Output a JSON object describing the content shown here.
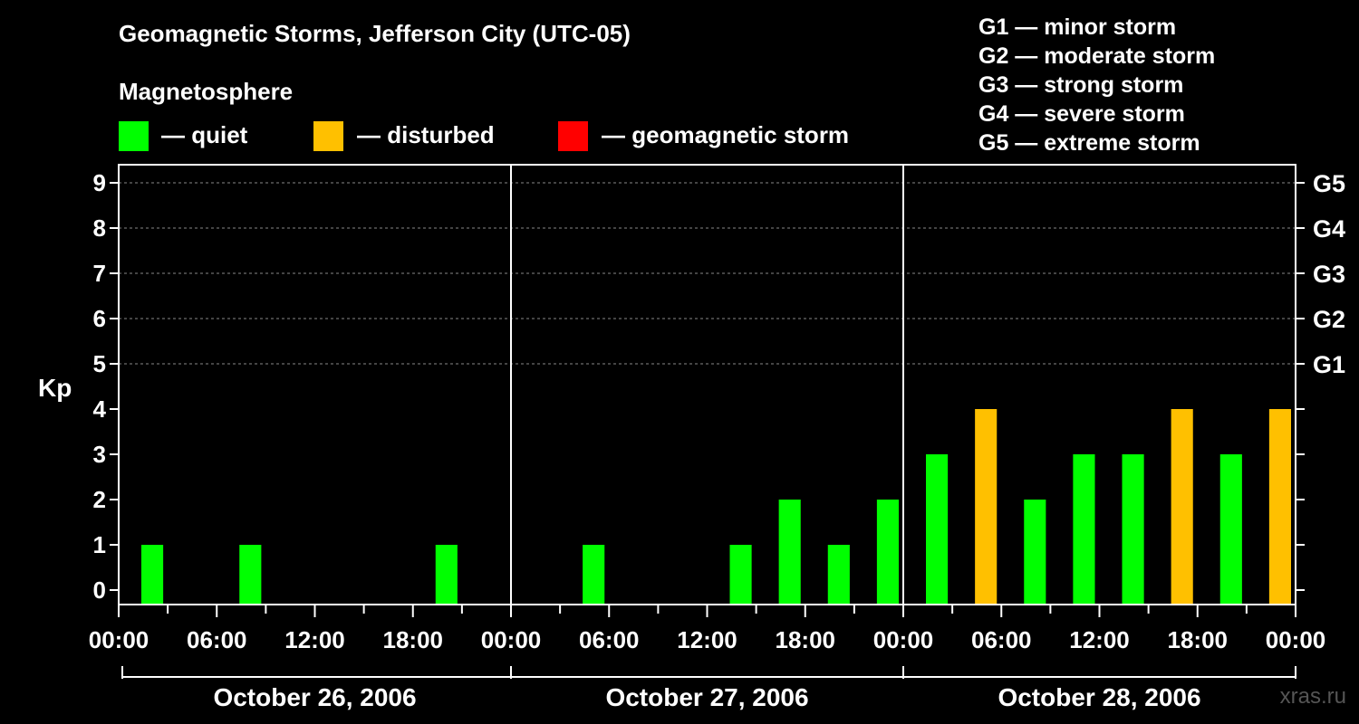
{
  "title": "Geomagnetic Storms, Jefferson City (UTC-05)",
  "legend": {
    "heading": "Magnetosphere",
    "items": [
      {
        "label": "— quiet",
        "color": "#00ff00"
      },
      {
        "label": "— disturbed",
        "color": "#ffc000"
      },
      {
        "label": "— geomagnetic storm",
        "color": "#ff0000"
      }
    ]
  },
  "g_scale": [
    "G1 — minor storm",
    "G2 — moderate storm",
    "G3 — strong storm",
    "G4 — severe storm",
    "G5 — extreme storm"
  ],
  "watermark": "xras.ru",
  "chart_data": {
    "type": "bar",
    "title": "Geomagnetic Storms, Jefferson City (UTC-05)",
    "ylabel": "Kp",
    "ylim": [
      0,
      9
    ],
    "y_ticks": [
      0,
      1,
      2,
      3,
      4,
      5,
      6,
      7,
      8,
      9
    ],
    "right_ticks": [
      {
        "kp": 5,
        "label": "G1"
      },
      {
        "kp": 6,
        "label": "G2"
      },
      {
        "kp": 7,
        "label": "G3"
      },
      {
        "kp": 8,
        "label": "G4"
      },
      {
        "kp": 9,
        "label": "G5"
      }
    ],
    "x_tick_labels": [
      "00:00",
      "06:00",
      "12:00",
      "18:00",
      "00:00",
      "06:00",
      "12:00",
      "18:00",
      "00:00",
      "06:00",
      "12:00",
      "18:00",
      "00:00"
    ],
    "dates": [
      "October 26, 2006",
      "October 27, 2006",
      "October 28, 2006"
    ],
    "grid_dashed_levels": [
      5,
      6,
      7,
      8,
      9
    ],
    "colors": {
      "quiet": "#00ff00",
      "disturbed": "#ffc000",
      "storm": "#ff0000"
    },
    "bars": [
      {
        "start": "2006-10-26 01:00",
        "kp": 1,
        "status": "quiet"
      },
      {
        "start": "2006-10-26 04:00",
        "kp": 0,
        "status": "quiet"
      },
      {
        "start": "2006-10-26 07:00",
        "kp": 1,
        "status": "quiet"
      },
      {
        "start": "2006-10-26 10:00",
        "kp": 0,
        "status": "quiet"
      },
      {
        "start": "2006-10-26 13:00",
        "kp": 0,
        "status": "quiet"
      },
      {
        "start": "2006-10-26 16:00",
        "kp": 0,
        "status": "quiet"
      },
      {
        "start": "2006-10-26 19:00",
        "kp": 1,
        "status": "quiet"
      },
      {
        "start": "2006-10-26 22:00",
        "kp": 0,
        "status": "quiet"
      },
      {
        "start": "2006-10-27 01:00",
        "kp": 0,
        "status": "quiet"
      },
      {
        "start": "2006-10-27 04:00",
        "kp": 1,
        "status": "quiet"
      },
      {
        "start": "2006-10-27 07:00",
        "kp": 0,
        "status": "quiet"
      },
      {
        "start": "2006-10-27 10:00",
        "kp": 0,
        "status": "quiet"
      },
      {
        "start": "2006-10-27 13:00",
        "kp": 1,
        "status": "quiet"
      },
      {
        "start": "2006-10-27 16:00",
        "kp": 2,
        "status": "quiet"
      },
      {
        "start": "2006-10-27 19:00",
        "kp": 1,
        "status": "quiet"
      },
      {
        "start": "2006-10-27 22:00",
        "kp": 2,
        "status": "quiet"
      },
      {
        "start": "2006-10-28 01:00",
        "kp": 3,
        "status": "quiet"
      },
      {
        "start": "2006-10-28 04:00",
        "kp": 4,
        "status": "disturbed"
      },
      {
        "start": "2006-10-28 07:00",
        "kp": 2,
        "status": "quiet"
      },
      {
        "start": "2006-10-28 10:00",
        "kp": 3,
        "status": "quiet"
      },
      {
        "start": "2006-10-28 13:00",
        "kp": 3,
        "status": "quiet"
      },
      {
        "start": "2006-10-28 16:00",
        "kp": 4,
        "status": "disturbed"
      },
      {
        "start": "2006-10-28 19:00",
        "kp": 3,
        "status": "quiet"
      },
      {
        "start": "2006-10-28 22:00",
        "kp": 4,
        "status": "disturbed"
      }
    ]
  }
}
